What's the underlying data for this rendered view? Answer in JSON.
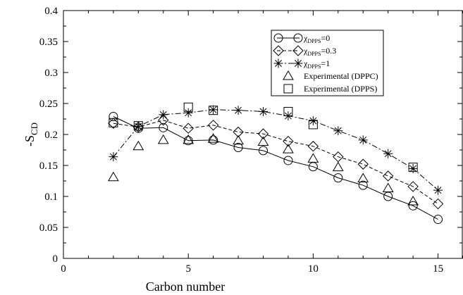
{
  "chart_data": {
    "type": "line",
    "title": "",
    "xlabel": "Carbon number",
    "ylabel_main": "-S",
    "ylabel_sub": "CD",
    "xlim": [
      0,
      16
    ],
    "ylim": [
      0,
      0.4
    ],
    "x_ticks": [
      0,
      5,
      10,
      15
    ],
    "y_ticks": [
      0,
      0.05,
      0.1,
      0.15,
      0.2,
      0.25,
      0.3,
      0.35,
      0.4
    ],
    "y_tick_labels": [
      "0",
      "0.05",
      "0.1",
      "0.15",
      "0.2",
      "0.25",
      "0.3",
      "0.35",
      "0.4"
    ],
    "grid": false,
    "legend_position": "top-right",
    "series": [
      {
        "name_main": "χ",
        "name_sub": "DPPS",
        "name_tail": "=0",
        "marker": "circle",
        "line": "solid",
        "x": [
          2,
          3,
          4,
          5,
          6,
          7,
          8,
          9,
          10,
          11,
          12,
          13,
          14,
          15
        ],
        "values": [
          0.229,
          0.21,
          0.211,
          0.19,
          0.191,
          0.179,
          0.174,
          0.158,
          0.148,
          0.13,
          0.118,
          0.1,
          0.085,
          0.063
        ]
      },
      {
        "name_main": "χ",
        "name_sub": "DPPS",
        "name_tail": "=0.3",
        "marker": "diamond",
        "line": "dashed",
        "x": [
          2,
          3,
          4,
          5,
          6,
          7,
          8,
          9,
          10,
          11,
          12,
          13,
          14,
          15
        ],
        "values": [
          0.218,
          0.212,
          0.223,
          0.21,
          0.215,
          0.204,
          0.201,
          0.189,
          0.181,
          0.164,
          0.152,
          0.133,
          0.116,
          0.088
        ]
      },
      {
        "name_main": "χ",
        "name_sub": "DPPS",
        "name_tail": "=1",
        "marker": "asterisk",
        "line": "dashdot",
        "x": [
          2,
          3,
          4,
          5,
          6,
          7,
          8,
          9,
          10,
          11,
          12,
          13,
          14,
          15
        ],
        "values": [
          0.164,
          0.213,
          0.232,
          0.235,
          0.24,
          0.239,
          0.237,
          0.23,
          0.222,
          0.206,
          0.191,
          0.169,
          0.145,
          0.11
        ]
      },
      {
        "name": "Experimental (DPPC)",
        "marker": "triangle",
        "line": "none",
        "x": [
          2,
          3,
          4,
          5,
          6,
          7,
          8,
          9,
          10,
          11,
          12,
          13,
          14
        ],
        "values": [
          0.131,
          0.181,
          0.191,
          0.191,
          0.193,
          0.19,
          0.188,
          0.176,
          0.161,
          0.147,
          0.129,
          0.113,
          0.092
        ]
      },
      {
        "name": "Experimental (DPPS)",
        "marker": "square",
        "line": "none",
        "x": [
          2,
          3,
          5,
          6,
          9,
          10,
          14
        ],
        "values": [
          0.219,
          0.214,
          0.244,
          0.239,
          0.237,
          0.216,
          0.147
        ]
      }
    ]
  }
}
